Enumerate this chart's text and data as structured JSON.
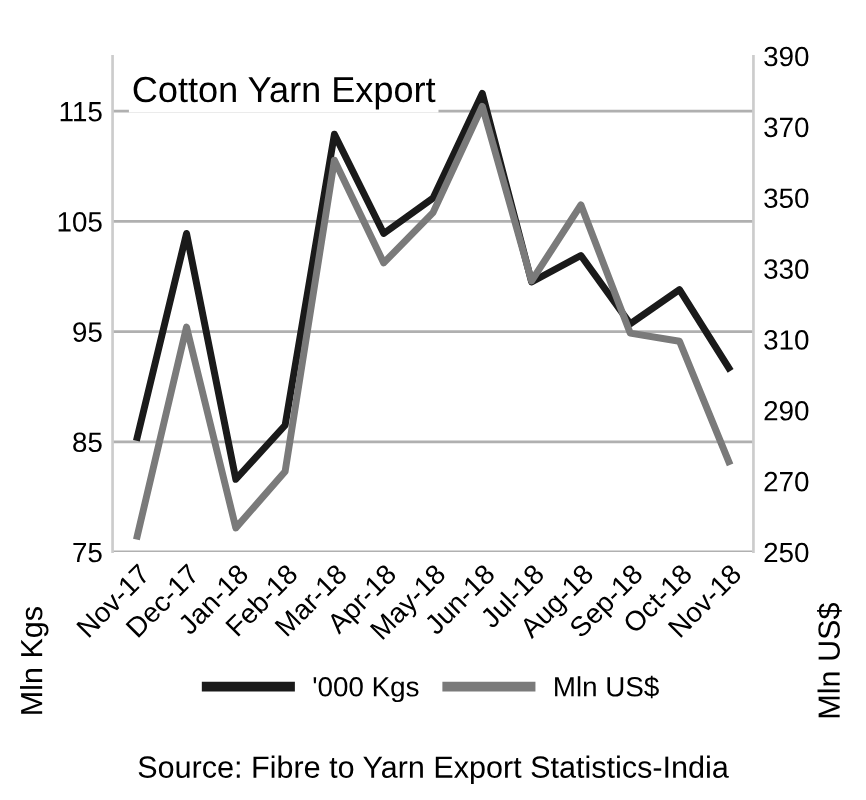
{
  "chart_data": {
    "type": "line",
    "title": "Cotton Yarn Export",
    "ylabel": "Mln Kgs",
    "y2label": "Mln US$",
    "categories": [
      "Nov-17",
      "Dec-17",
      "Jan-18",
      "Feb-18",
      "Mar-18",
      "Apr-18",
      "May-18",
      "Jun-18",
      "Jul-18",
      "Aug-18",
      "Sep-18",
      "Oct-18",
      "Nov-18"
    ],
    "series": [
      {
        "name": "'000 Kgs",
        "color": "#1a1a1a",
        "values": [
          85.4,
          103.9,
          81.6,
          86.5,
          112.9,
          103.9,
          107.1,
          116.6,
          99.5,
          101.9,
          95.7,
          98.8,
          91.7
        ]
      },
      {
        "name": "Mln US$",
        "color": "#7a7a7a",
        "axis": "y2",
        "values": [
          254.5,
          313.5,
          256.8,
          272.7,
          360.6,
          331.6,
          345.8,
          375.8,
          326.5,
          348,
          311.8,
          309.5,
          275.5
        ]
      }
    ],
    "ylim": [
      75,
      120
    ],
    "yticks": [
      75,
      85,
      95,
      105,
      115
    ],
    "y2lim": [
      250,
      390
    ],
    "y2ticks": [
      250,
      270,
      290,
      310,
      330,
      350,
      370,
      390
    ],
    "grid": "y",
    "legend": "bottom",
    "line_style": "solid",
    "marker": "none",
    "annotations": [
      "Source: Fibre to Yarn Export Statistics-India"
    ]
  }
}
